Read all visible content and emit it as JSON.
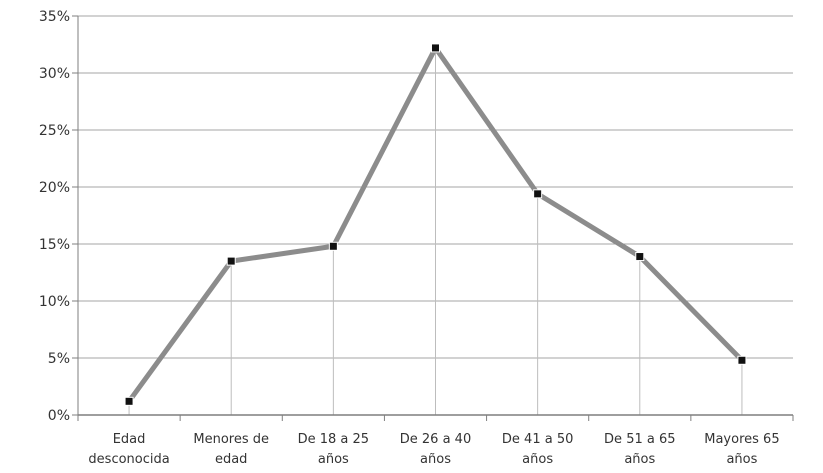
{
  "chart_data": {
    "type": "line",
    "categories": [
      [
        "Edad",
        "desconocida"
      ],
      [
        "Menores de",
        "edad"
      ],
      [
        "De 18 a 25",
        "años"
      ],
      [
        "De 26 a 40",
        "años"
      ],
      [
        "De 41 a 50",
        "años"
      ],
      [
        "De 51 a 65",
        "años"
      ],
      [
        "Mayores 65",
        "años"
      ]
    ],
    "values": [
      1.2,
      13.5,
      14.8,
      32.2,
      19.4,
      13.9,
      4.8
    ],
    "ylim": [
      0,
      35
    ],
    "yticks": [
      0,
      5,
      10,
      15,
      20,
      25,
      30,
      35
    ],
    "ytick_labels": [
      "0%",
      "5%",
      "10%",
      "15%",
      "20%",
      "25%",
      "30%",
      "35%"
    ],
    "grid": true,
    "drop_lines": true,
    "legend": "none",
    "colors": {
      "line": "#8c8c8c",
      "marker": "#111111",
      "grid": "#a6a6a6",
      "axis": "#7f7f7f",
      "drop_line": "#bdbdbd"
    }
  }
}
